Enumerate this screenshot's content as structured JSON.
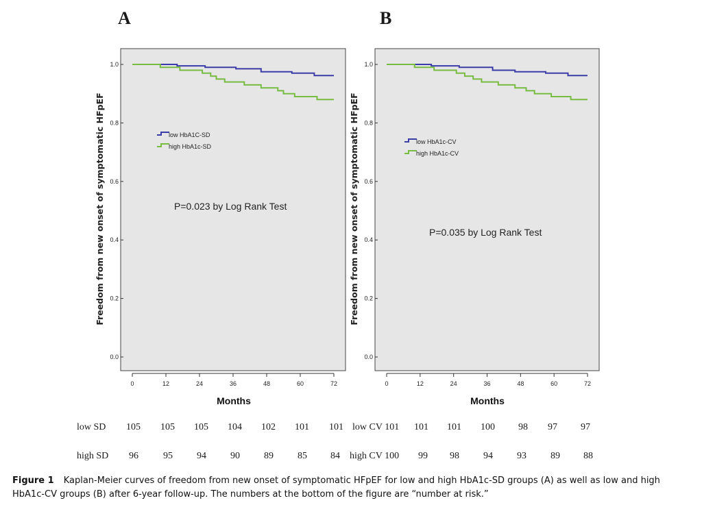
{
  "panels": [
    {
      "letter": "A"
    },
    {
      "letter": "B"
    }
  ],
  "chart_data": [
    {
      "type": "line",
      "panel": "A",
      "ylabel": "Freedom from new onset of symptomatic HFpEF",
      "xlabel": "Months",
      "xlim": [
        0,
        72
      ],
      "ylim": [
        0,
        1.05
      ],
      "x_ticks": [
        "0",
        "12",
        "24",
        "36",
        "48",
        "60",
        "72"
      ],
      "y_ticks": [
        "0.0",
        "0.2",
        "0.4",
        "0.6",
        "0.8",
        "1.0"
      ],
      "grid": false,
      "legend_position": "upper-left",
      "annotation": "P=0.023 by Log Rank Test",
      "series": [
        {
          "name": "low HbA1C-SD",
          "color": "#3b3ba8",
          "points": [
            [
              0,
              1.0
            ],
            [
              10,
              1.0
            ],
            [
              16,
              0.995
            ],
            [
              26,
              0.99
            ],
            [
              37,
              0.985
            ],
            [
              46,
              0.975
            ],
            [
              57,
              0.97
            ],
            [
              65,
              0.962
            ],
            [
              72,
              0.962
            ]
          ]
        },
        {
          "name": "high HbA1c-SD",
          "color": "#77bb41",
          "points": [
            [
              0,
              1.0
            ],
            [
              10,
              0.99
            ],
            [
              17,
              0.98
            ],
            [
              25,
              0.97
            ],
            [
              28,
              0.96
            ],
            [
              30,
              0.95
            ],
            [
              33,
              0.94
            ],
            [
              40,
              0.93
            ],
            [
              46,
              0.92
            ],
            [
              52,
              0.91
            ],
            [
              54,
              0.9
            ],
            [
              58,
              0.89
            ],
            [
              66,
              0.88
            ],
            [
              72,
              0.88
            ]
          ]
        }
      ]
    },
    {
      "type": "line",
      "panel": "B",
      "ylabel": "Freedom from new onset of symptomatic HFpEF",
      "xlabel": "Months",
      "xlim": [
        0,
        72
      ],
      "ylim": [
        0,
        1.05
      ],
      "x_ticks": [
        "0",
        "12",
        "24",
        "36",
        "48",
        "60",
        "72"
      ],
      "y_ticks": [
        "0.0",
        "0.2",
        "0.4",
        "0.6",
        "0.8",
        "1.0"
      ],
      "grid": false,
      "legend_position": "upper-left",
      "annotation": "P=0.035 by Log Rank Test",
      "series": [
        {
          "name": "low HbA1c-CV",
          "color": "#3b3ba8",
          "points": [
            [
              0,
              1.0
            ],
            [
              10,
              1.0
            ],
            [
              16,
              0.995
            ],
            [
              26,
              0.99
            ],
            [
              38,
              0.98
            ],
            [
              46,
              0.975
            ],
            [
              57,
              0.97
            ],
            [
              65,
              0.962
            ],
            [
              72,
              0.962
            ]
          ]
        },
        {
          "name": "high HbA1c-CV",
          "color": "#77bb41",
          "points": [
            [
              0,
              1.0
            ],
            [
              10,
              0.99
            ],
            [
              17,
              0.98
            ],
            [
              25,
              0.97
            ],
            [
              28,
              0.96
            ],
            [
              31,
              0.95
            ],
            [
              34,
              0.94
            ],
            [
              40,
              0.93
            ],
            [
              46,
              0.92
            ],
            [
              50,
              0.91
            ],
            [
              53,
              0.9
            ],
            [
              59,
              0.89
            ],
            [
              66,
              0.88
            ],
            [
              72,
              0.88
            ]
          ]
        }
      ]
    }
  ],
  "risk_table": {
    "rows": [
      {
        "label": "low SD",
        "values": [
          "105",
          "105",
          "105",
          "104",
          "102",
          "101",
          "101"
        ]
      },
      {
        "label": "high SD",
        "values": [
          "96",
          "95",
          "94",
          "90",
          "89",
          "85",
          "84"
        ]
      },
      {
        "label": "low CV 101",
        "values": [
          "101",
          "101",
          "100",
          "98",
          "97",
          "97"
        ]
      },
      {
        "label": "high CV 100",
        "values": [
          "99",
          "98",
          "94",
          "93",
          "89",
          "88"
        ]
      }
    ]
  },
  "caption": {
    "label": "Figure 1",
    "text": "Kaplan-Meier curves of freedom from new onset of symptomatic HFpEF for low and high HbA1c-SD groups (A) as well as low and high HbA1c-CV groups (B) after 6-year follow-up. The numbers at the bottom of the figure are “number at risk.”"
  },
  "colors": {
    "plot_background": "#e6e6e6",
    "axis": "#333333"
  }
}
